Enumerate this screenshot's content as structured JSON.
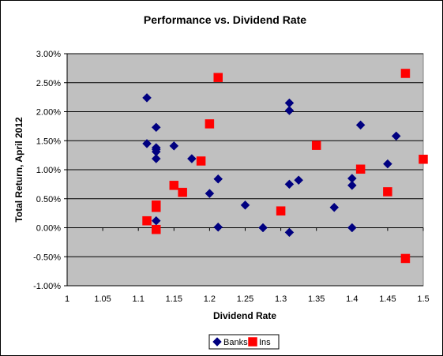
{
  "chart_data": {
    "type": "scatter",
    "title": "Performance vs. Dividend Rate",
    "xlabel": "Dividend Rate",
    "ylabel": "Total Return, April 2012",
    "xlim": [
      1,
      1.5
    ],
    "ylim": [
      -1.0,
      3.0
    ],
    "x_ticks": [
      1,
      1.05,
      1.1,
      1.15,
      1.2,
      1.25,
      1.3,
      1.35,
      1.4,
      1.45,
      1.5
    ],
    "x_tick_labels": [
      "1",
      "1.05",
      "1.1",
      "1.15",
      "1.2",
      "1.25",
      "1.3",
      "1.35",
      "1.4",
      "1.45",
      "1.5"
    ],
    "y_ticks": [
      -1.0,
      -0.5,
      0.0,
      0.5,
      1.0,
      1.5,
      2.0,
      2.5,
      3.0
    ],
    "y_tick_labels": [
      "-1.00%",
      "-0.50%",
      "0.00%",
      "0.50%",
      "1.00%",
      "1.50%",
      "2.00%",
      "2.50%",
      "3.00%"
    ],
    "grid": "horizontal",
    "legend_position": "bottom",
    "plot_background": "#c0c0c0",
    "series": [
      {
        "name": "Banks",
        "marker": "diamond",
        "color": "#000080",
        "points": [
          [
            1.112,
            2.24
          ],
          [
            1.112,
            1.45
          ],
          [
            1.125,
            1.73
          ],
          [
            1.125,
            1.38
          ],
          [
            1.125,
            1.35
          ],
          [
            1.125,
            1.31
          ],
          [
            1.125,
            1.19
          ],
          [
            1.125,
            0.12
          ],
          [
            1.15,
            1.41
          ],
          [
            1.175,
            1.19
          ],
          [
            1.2,
            0.59
          ],
          [
            1.212,
            0.84
          ],
          [
            1.212,
            0.01
          ],
          [
            1.25,
            0.39
          ],
          [
            1.275,
            0.0
          ],
          [
            1.312,
            2.15
          ],
          [
            1.312,
            2.02
          ],
          [
            1.312,
            0.75
          ],
          [
            1.312,
            -0.08
          ],
          [
            1.325,
            0.82
          ],
          [
            1.375,
            0.35
          ],
          [
            1.4,
            0.85
          ],
          [
            1.4,
            0.73
          ],
          [
            1.4,
            0.0
          ],
          [
            1.412,
            1.77
          ],
          [
            1.45,
            1.1
          ],
          [
            1.462,
            1.58
          ]
        ]
      },
      {
        "name": "Ins",
        "marker": "square",
        "color": "#ff0000",
        "points": [
          [
            1.112,
            0.12
          ],
          [
            1.125,
            0.39
          ],
          [
            1.125,
            0.35
          ],
          [
            1.125,
            -0.03
          ],
          [
            1.15,
            0.73
          ],
          [
            1.162,
            0.61
          ],
          [
            1.188,
            1.15
          ],
          [
            1.2,
            1.79
          ],
          [
            1.212,
            2.59
          ],
          [
            1.3,
            0.29
          ],
          [
            1.35,
            1.42
          ],
          [
            1.412,
            1.01
          ],
          [
            1.45,
            0.62
          ],
          [
            1.475,
            2.66
          ],
          [
            1.475,
            -0.53
          ],
          [
            1.5,
            1.18
          ]
        ]
      }
    ]
  }
}
